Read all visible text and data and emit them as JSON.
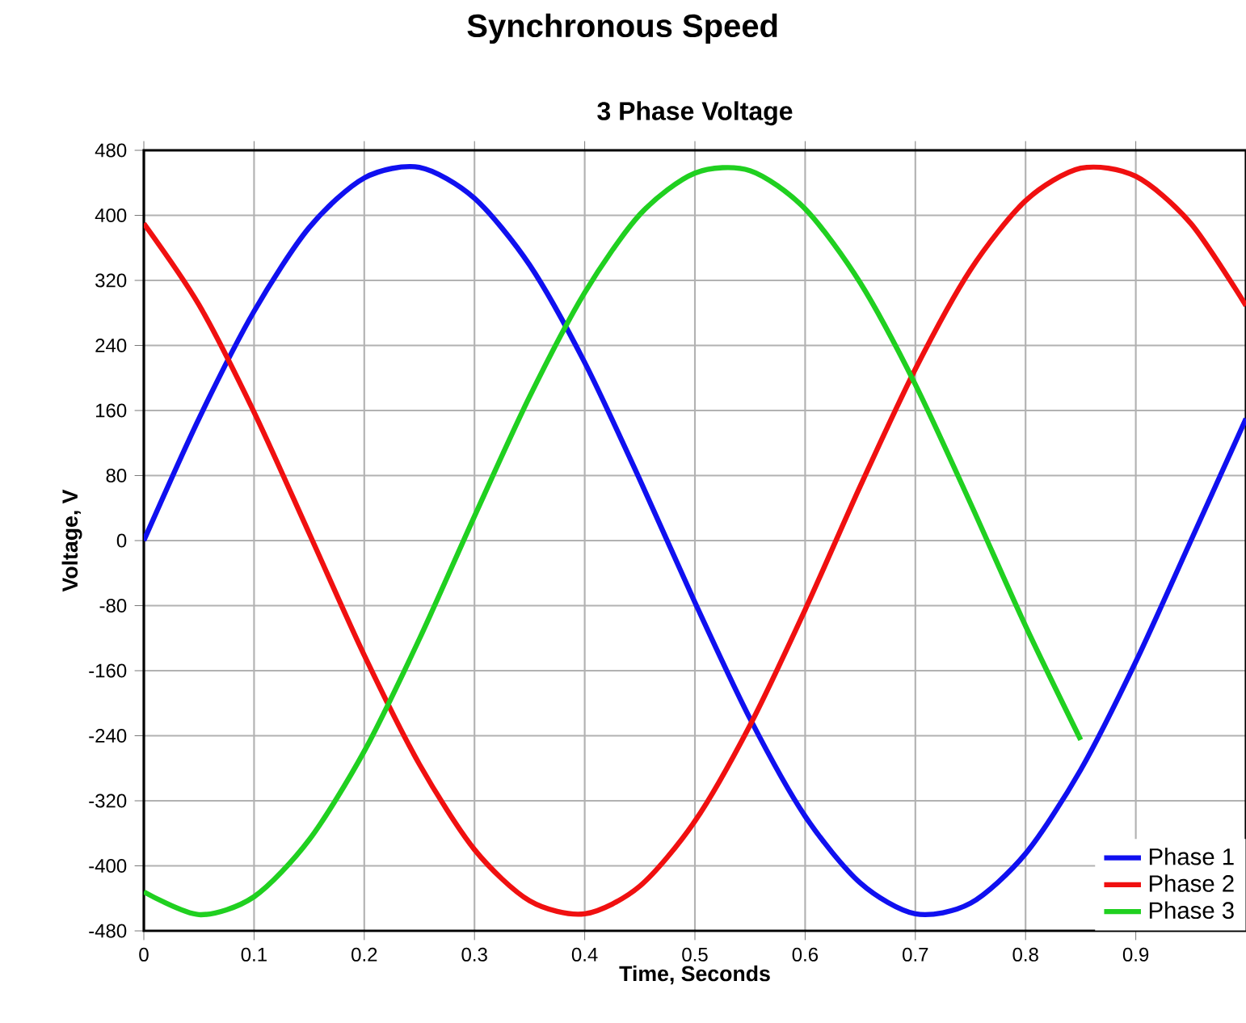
{
  "chart_data": {
    "type": "line",
    "title": "Synchronous Speed",
    "subtitle": "3 Phase Voltage",
    "xlabel": "Time, Seconds",
    "ylabel": "Voltage, V",
    "x": [
      0,
      0.05,
      0.1,
      0.15,
      0.2,
      0.25,
      0.3,
      0.35,
      0.4,
      0.45,
      0.5,
      0.55,
      0.6,
      0.65,
      0.7,
      0.75,
      0.8,
      0.85,
      0.9,
      0.95,
      1.0
    ],
    "series": [
      {
        "name": "Phase 1",
        "color": "#1010f0",
        "values": [
          0,
          150,
          282,
          385,
          446,
          459,
          421,
          339,
          219,
          75,
          -76,
          -219,
          -339,
          -421,
          -459,
          -446,
          -385,
          -282,
          -149,
          0,
          150
        ]
      },
      {
        "name": "Phase 2",
        "color": "#f01010",
        "values": [
          390,
          290,
          158,
          9,
          -141,
          -275,
          -380,
          -443,
          -459,
          -425,
          -345,
          -227,
          -85,
          67,
          211,
          333,
          418,
          458,
          448,
          390,
          289
        ]
      },
      {
        "name": "Phase 3",
        "color": "#20d020",
        "values": [
          -432,
          -460,
          -438,
          -368,
          -259,
          -121,
          30,
          177,
          305,
          401,
          452,
          455,
          408,
          317,
          192,
          46,
          -105,
          -245,
          null,
          null,
          null
        ]
      }
    ],
    "xlim": [
      0,
      1.0
    ],
    "ylim": [
      -480,
      480
    ],
    "xticks": [
      0,
      0.1,
      0.2,
      0.3,
      0.4,
      0.5,
      0.6,
      0.7,
      0.8,
      0.9
    ],
    "yticks": [
      -480,
      -400,
      -320,
      -240,
      -160,
      -80,
      0,
      80,
      160,
      240,
      320,
      400,
      480
    ],
    "grid": true,
    "legend": "bottom right",
    "marker": "none",
    "line_style": "solid"
  }
}
